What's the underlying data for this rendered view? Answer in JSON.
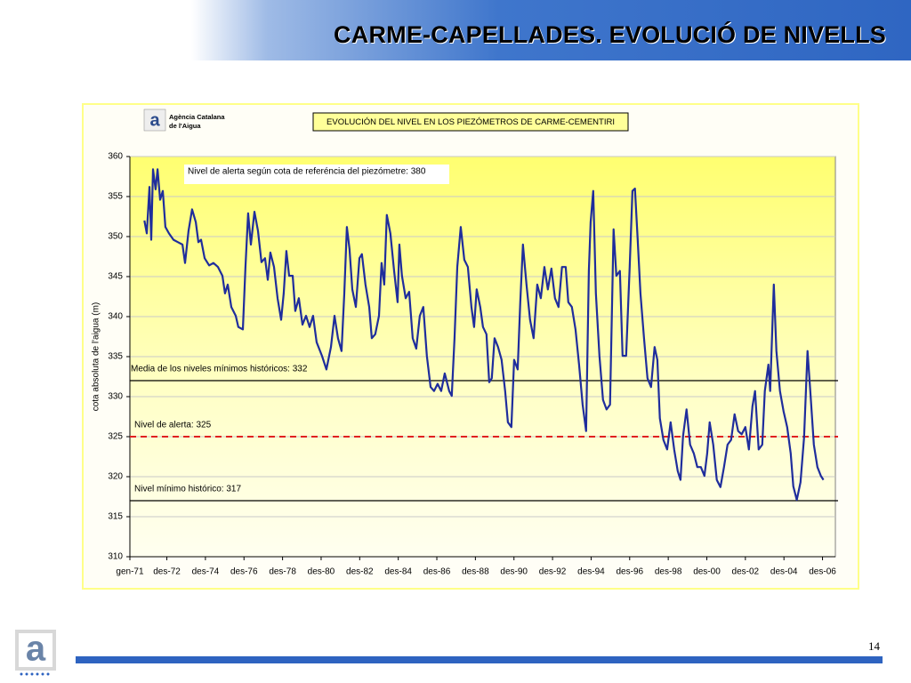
{
  "slide": {
    "title": "CARME-CAPELLADES. EVOLUCIÓ DE NIVELLS",
    "page_number": "14",
    "logo_text": [
      "Agència Catalana",
      "de l'Aigua"
    ]
  },
  "chart_data": {
    "type": "line",
    "title": "EVOLUCIÓN DEL NIVEL EN LOS PIEZÓMETROS DE CARME-CEMENTIRI",
    "y_label": "cota absoluta de l'aigua (m)",
    "color": "#1f2d9c",
    "ylim": [
      310,
      360
    ],
    "yticks": [
      310,
      315,
      320,
      325,
      330,
      335,
      340,
      345,
      350,
      355,
      360
    ],
    "grid": true,
    "xlim": [
      0,
      439
    ],
    "xticks": [
      {
        "value": 0,
        "label": "gen-71"
      },
      {
        "value": 23,
        "label": "des-72"
      },
      {
        "value": 47,
        "label": "des-74"
      },
      {
        "value": 71,
        "label": "des-76"
      },
      {
        "value": 95,
        "label": "des-78"
      },
      {
        "value": 119,
        "label": "des-80"
      },
      {
        "value": 143,
        "label": "des-82"
      },
      {
        "value": 167,
        "label": "des-84"
      },
      {
        "value": 191,
        "label": "des-86"
      },
      {
        "value": 215,
        "label": "des-88"
      },
      {
        "value": 239,
        "label": "des-90"
      },
      {
        "value": 263,
        "label": "des-92"
      },
      {
        "value": 287,
        "label": "des-94"
      },
      {
        "value": 311,
        "label": "des-96"
      },
      {
        "value": 335,
        "label": "des-98"
      },
      {
        "value": 359,
        "label": "des-00"
      },
      {
        "value": 383,
        "label": "des-02"
      },
      {
        "value": 407,
        "label": "des-04"
      },
      {
        "value": 431,
        "label": "des-06"
      }
    ],
    "x": [
      9,
      10.5,
      12.2,
      13.3,
      14.4,
      16,
      17.2,
      18.8,
      20.5,
      22.1,
      24.3,
      27.1,
      29.9,
      32.7,
      34.3,
      36.5,
      38.7,
      41,
      42.6,
      44.3,
      46.5,
      49.3,
      52,
      54.8,
      57.6,
      59.2,
      60.9,
      63.1,
      65.9,
      67.5,
      70.3,
      71.9,
      73.6,
      75.3,
      77.5,
      79.7,
      81.9,
      84.1,
      85.8,
      87.4,
      89.7,
      91.9,
      94.1,
      95.7,
      97.4,
      99.1,
      101.3,
      102.9,
      105.1,
      107.4,
      109.6,
      111.8,
      114,
      116.2,
      119.5,
      122.3,
      125.1,
      127.3,
      129.5,
      131.7,
      133.4,
      135,
      136.7,
      138.4,
      140.6,
      142.8,
      144.4,
      146.6,
      148.9,
      150.5,
      152.7,
      155,
      156.6,
      158.3,
      159.9,
      162.1,
      164.4,
      166.6,
      167.7,
      169.3,
      171.6,
      173.8,
      176,
      178.2,
      180.4,
      182.6,
      184.8,
      187.1,
      189.3,
      191.5,
      193.7,
      195.9,
      198.7,
      200.3,
      202,
      203.7,
      205.9,
      208.1,
      210.3,
      212.5,
      214.2,
      215.8,
      218,
      219.7,
      221.9,
      223.6,
      225.2,
      226.9,
      229.1,
      231.3,
      233.5,
      235.2,
      237.4,
      239.1,
      241.3,
      242.9,
      244.6,
      246.8,
      249,
      251.2,
      253.5,
      255.7,
      257.9,
      260.1,
      262.3,
      264.5,
      266.7,
      268.9,
      271.2,
      272.8,
      275,
      277.3,
      279.5,
      281.7,
      283.9,
      285.6,
      286.7,
      288.3,
      290,
      292.2,
      294.4,
      296.6,
      298.8,
      301,
      302.7,
      304.9,
      306.6,
      308.8,
      311,
      312.7,
      314.3,
      316,
      317.7,
      319.9,
      322.1,
      324.3,
      326.5,
      328.2,
      329.8,
      332,
      334.3,
      336.5,
      338.7,
      340.9,
      342.6,
      344.2,
      346.4,
      348.6,
      350.9,
      353.1,
      355.3,
      357.5,
      359.2,
      360.8,
      363,
      365.2,
      367.5,
      369.7,
      371.9,
      374.1,
      376.3,
      378.5,
      380.7,
      383,
      385.2,
      387.4,
      389,
      391.3,
      393.5,
      395.1,
      397.3,
      398.4,
      400.7,
      402.3,
      404.5,
      406.7,
      409,
      411.2,
      412.8,
      415,
      417.3,
      419.5,
      421.7,
      423.4,
      425.6,
      427.8,
      430,
      431.6
    ],
    "values": [
      352,
      350.4,
      356.2,
      349.6,
      358.4,
      355.9,
      358.4,
      354.6,
      355.7,
      351.2,
      350.4,
      349.6,
      349.3,
      349,
      346.7,
      350.7,
      353.4,
      351.8,
      349.3,
      349.6,
      347.3,
      346.4,
      346.7,
      346.2,
      345.1,
      342.9,
      344,
      341.2,
      340.1,
      338.7,
      338.4,
      346.2,
      352.9,
      349,
      353.1,
      350.7,
      346.8,
      347.3,
      344.6,
      348,
      346.2,
      342.3,
      339.6,
      342.9,
      348.2,
      345.1,
      345.1,
      340.7,
      342.3,
      339,
      340.1,
      338.7,
      340.1,
      336.8,
      335.1,
      333.4,
      336.2,
      340.1,
      337.3,
      335.7,
      342.9,
      351.2,
      348.4,
      343.4,
      341.2,
      347.3,
      347.8,
      344,
      341.2,
      337.3,
      337.8,
      340.1,
      346.7,
      344,
      352.7,
      350.4,
      345.7,
      341.8,
      349,
      345.1,
      342.3,
      343.1,
      337.3,
      336,
      340.1,
      341.2,
      335.1,
      331.2,
      330.7,
      331.6,
      330.7,
      332.9,
      330.7,
      330.1,
      337.3,
      346.2,
      351.2,
      347.1,
      346.2,
      341.2,
      338.7,
      343.4,
      341.2,
      338.7,
      337.8,
      331.8,
      332.3,
      337.3,
      336.2,
      334.6,
      330.7,
      326.8,
      326.2,
      334.6,
      333.4,
      341.8,
      349,
      344,
      339.6,
      337.3,
      344,
      342.3,
      346.2,
      343.4,
      346,
      342.3,
      341.2,
      346.2,
      346.2,
      341.8,
      341.2,
      338.4,
      334,
      329,
      325.7,
      345.7,
      351.8,
      355.7,
      342.9,
      335.1,
      329.6,
      328.4,
      329,
      350.9,
      345.1,
      345.7,
      335.1,
      335.1,
      346.2,
      355.7,
      356,
      349.6,
      342.9,
      337.3,
      332.3,
      331.2,
      336.2,
      334.6,
      327.3,
      324.6,
      323.4,
      326.8,
      323.4,
      320.7,
      319.6,
      325.1,
      328.4,
      324,
      322.9,
      321.2,
      321.2,
      320.1,
      322.9,
      326.8,
      324,
      319.6,
      318.7,
      321.2,
      324,
      324.6,
      327.8,
      325.7,
      325.3,
      326.2,
      323.4,
      328.8,
      330.7,
      323.4,
      324,
      330.7,
      334,
      330.7,
      344,
      335.7,
      330.7,
      328.2,
      326.2,
      322.9,
      318.8,
      317.1,
      319.3,
      324.9,
      335.7,
      330.7,
      324,
      321.2,
      320.1,
      319.6
    ],
    "reference_lines": [
      {
        "label": "Media de los niveles mínimos históricos: 332",
        "value": 332,
        "color": "#000000",
        "style": "solid"
      },
      {
        "label": "Nivel de alerta: 325",
        "value": 325,
        "color": "#e02020",
        "style": "dashed"
      },
      {
        "label": "Nivel mínimo histórico: 317",
        "value": 317,
        "color": "#000000",
        "style": "solid"
      }
    ],
    "annotations": [
      "Nivel de alerta según cota de referéncia del piezómetre: 380"
    ]
  }
}
